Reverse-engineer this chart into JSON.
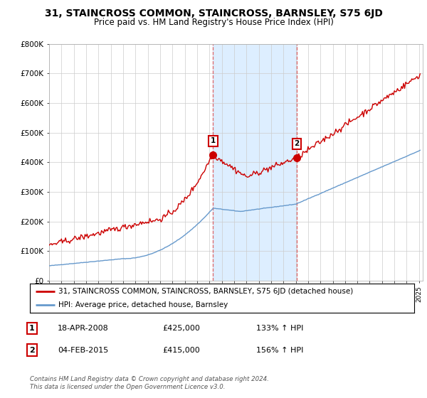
{
  "title": "31, STAINCROSS COMMON, STAINCROSS, BARNSLEY, S75 6JD",
  "subtitle": "Price paid vs. HM Land Registry's House Price Index (HPI)",
  "title_fontsize": 10,
  "subtitle_fontsize": 8.5,
  "ylim": [
    0,
    800000
  ],
  "yticks": [
    0,
    100000,
    200000,
    300000,
    400000,
    500000,
    600000,
    700000,
    800000
  ],
  "ytick_labels": [
    "£0",
    "£100K",
    "£200K",
    "£300K",
    "£400K",
    "£500K",
    "£600K",
    "£700K",
    "£800K"
  ],
  "xlim_start": 1995.0,
  "xlim_end": 2025.3,
  "sale1_x": 2008.3,
  "sale1_y": 425000,
  "sale1_label": "1",
  "sale1_date": "18-APR-2008",
  "sale1_price": "£425,000",
  "sale1_hpi": "133% ↑ HPI",
  "sale2_x": 2015.09,
  "sale2_y": 415000,
  "sale2_label": "2",
  "sale2_date": "04-FEB-2015",
  "sale2_price": "£415,000",
  "sale2_hpi": "156% ↑ HPI",
  "red_line_color": "#cc0000",
  "blue_line_color": "#6699cc",
  "shade_color": "#ddeeff",
  "marker_box_color": "#cc0000",
  "background_color": "#ffffff",
  "grid_color": "#cccccc",
  "legend_line1": "31, STAINCROSS COMMON, STAINCROSS, BARNSLEY, S75 6JD (detached house)",
  "legend_line2": "HPI: Average price, detached house, Barnsley",
  "footer": "Contains HM Land Registry data © Crown copyright and database right 2024.\nThis data is licensed under the Open Government Licence v3.0."
}
